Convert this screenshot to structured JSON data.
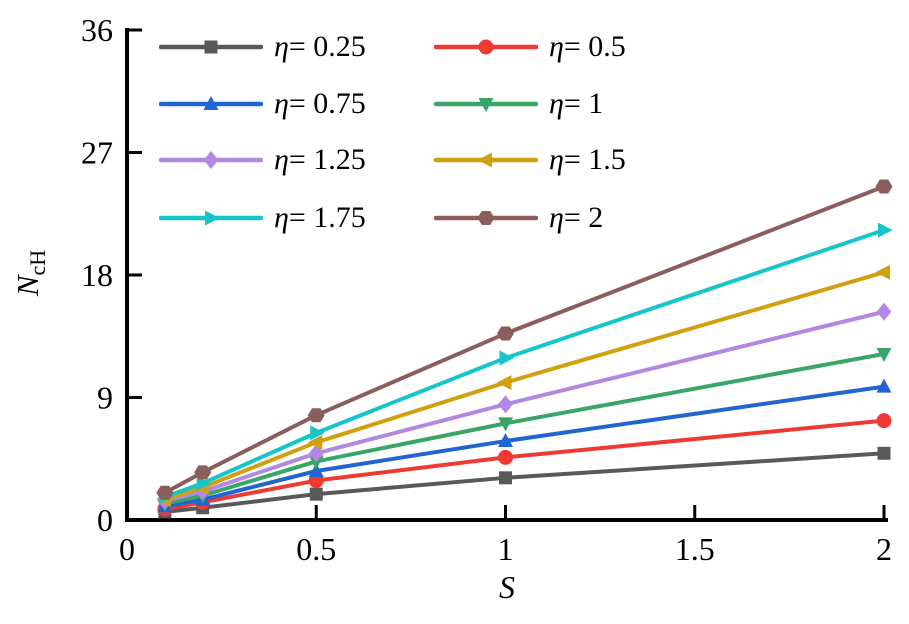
{
  "chart_data": {
    "type": "line",
    "title": "",
    "xlabel": "S",
    "ylabel": {
      "base": "N",
      "sub": "cH"
    },
    "xlim": [
      0,
      2
    ],
    "ylim": [
      0,
      36
    ],
    "x": [
      0.1,
      0.2,
      0.5,
      1,
      2
    ],
    "xticks": {
      "values": [
        0,
        0.5,
        1,
        1.5,
        2
      ],
      "labels": [
        "0",
        "0.5",
        "1",
        "1.5",
        "2"
      ]
    },
    "yticks": {
      "values": [
        0,
        9,
        18,
        27,
        36
      ],
      "labels": [
        "0",
        "9",
        "18",
        "27",
        "36"
      ]
    },
    "grid": false,
    "legend_position": "inside-top-left, 2 columns, no frame",
    "axis_color": "#000000",
    "series": [
      {
        "label": "η= 0.25",
        "marker": "square",
        "color": "#595959",
        "values": [
          0.6,
          0.9,
          1.9,
          3.1,
          4.9
        ]
      },
      {
        "label": "η= 0.5",
        "marker": "circle",
        "color": "#ee3a33",
        "values": [
          0.8,
          1.3,
          2.9,
          4.6,
          7.3
        ]
      },
      {
        "label": "η= 0.75",
        "marker": "triangle-up",
        "color": "#2065d1",
        "values": [
          1.0,
          1.5,
          3.6,
          5.8,
          9.8
        ]
      },
      {
        "label": "η= 1",
        "marker": "triangle-down",
        "color": "#38a569",
        "values": [
          1.2,
          1.8,
          4.3,
          7.1,
          12.2
        ]
      },
      {
        "label": "η= 1.25",
        "marker": "diamond",
        "color": "#b288e2",
        "values": [
          1.4,
          2.1,
          4.9,
          8.5,
          15.3
        ]
      },
      {
        "label": "η= 1.5",
        "marker": "triangle-left",
        "color": "#d0a00e",
        "values": [
          1.5,
          2.4,
          5.7,
          10.1,
          18.2
        ]
      },
      {
        "label": "η= 1.75",
        "marker": "triangle-right",
        "color": "#16c5c9",
        "values": [
          1.7,
          2.7,
          6.4,
          11.9,
          21.3
        ]
      },
      {
        "label": "η= 2",
        "marker": "hexagon",
        "color": "#8a5e5c",
        "values": [
          2.0,
          3.5,
          7.7,
          13.7,
          24.5
        ]
      }
    ]
  }
}
